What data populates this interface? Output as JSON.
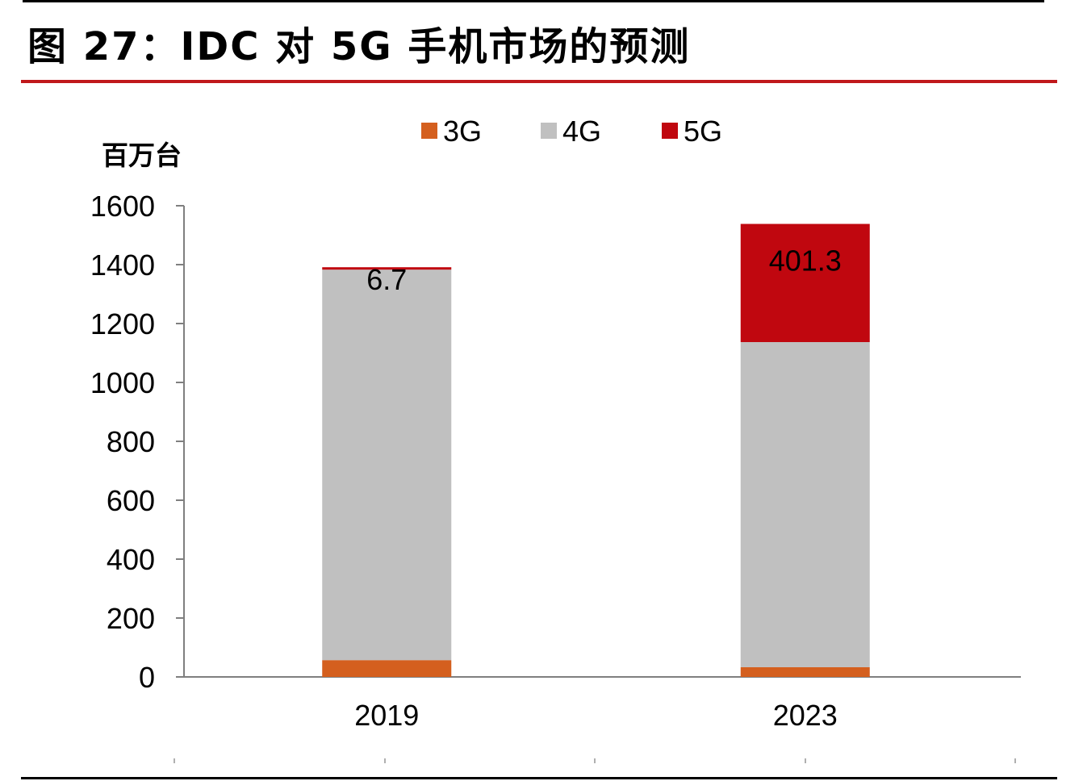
{
  "figure": {
    "title": "图 27：IDC 对 5G 手机市场的预测"
  },
  "chart_data": {
    "type": "bar",
    "stacked": true,
    "title": "图 27：IDC 对 5G 手机市场的预测",
    "unit_label": "百万台",
    "xlabel": "",
    "ylabel": "百万台",
    "ylim": [
      0,
      1600
    ],
    "yticks": [
      0,
      200,
      400,
      600,
      800,
      1000,
      1200,
      1400,
      1600
    ],
    "categories": [
      "2019",
      "2023"
    ],
    "series": [
      {
        "name": "3G",
        "color": "#d45f1e",
        "values": [
          57,
          33
        ]
      },
      {
        "name": "4G",
        "color": "#c0c0c0",
        "values": [
          1326,
          1104
        ]
      },
      {
        "name": "5G",
        "color": "#c0070f",
        "values": [
          6.7,
          401.3
        ]
      }
    ],
    "data_labels": [
      {
        "series": "5G",
        "category": "2019",
        "text": "6.7"
      },
      {
        "series": "5G",
        "category": "2023",
        "text": "401.3"
      }
    ],
    "legend": {
      "position": "top-center",
      "entries": [
        "3G",
        "4G",
        "5G"
      ]
    },
    "grid": false
  }
}
